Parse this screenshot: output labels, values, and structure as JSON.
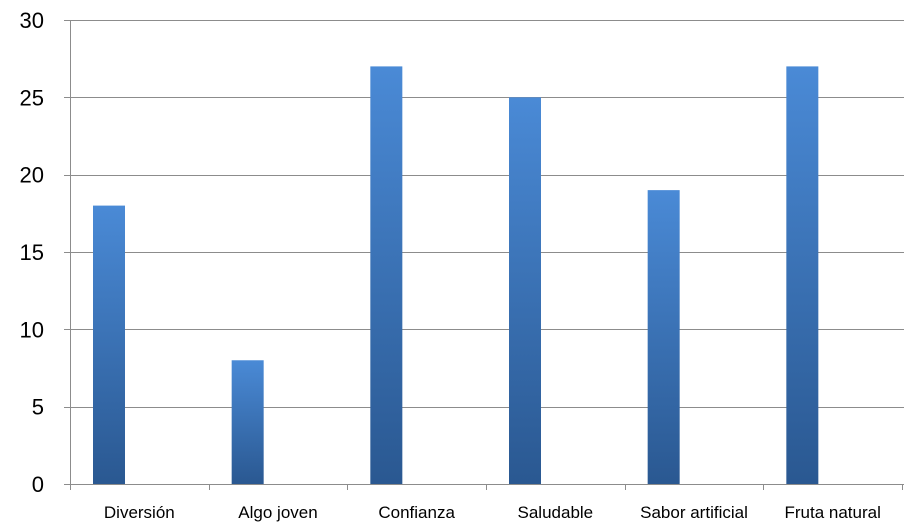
{
  "chart_data": {
    "type": "bar",
    "categories": [
      "Diversión",
      "Algo joven",
      "Confianza",
      "Saludable",
      "Sabor artificial",
      "Fruta natural"
    ],
    "series": [
      {
        "values": [
          18,
          8,
          27,
          25,
          19,
          27
        ]
      }
    ],
    "title": "",
    "xlabel": "",
    "ylabel": "",
    "ylim": [
      0,
      30
    ],
    "yticks": [
      "0",
      "5",
      "10",
      "15",
      "20",
      "25",
      "30"
    ],
    "grid": true,
    "legend": "none",
    "colors": {
      "bar_top": "#4a8ad6",
      "bar_bottom": "#2a5891",
      "grid": "#8c8c8c",
      "axis": "#8c8c8c"
    }
  }
}
